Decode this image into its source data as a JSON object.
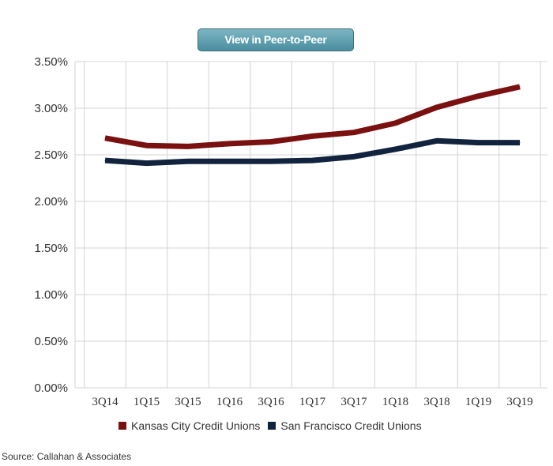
{
  "button": {
    "label": "View in Peer-to-Peer"
  },
  "chart_data": {
    "type": "line",
    "title": "",
    "xlabel": "",
    "ylabel": "",
    "categories": [
      "3Q14",
      "1Q15",
      "3Q15",
      "1Q16",
      "3Q16",
      "1Q17",
      "3Q17",
      "1Q18",
      "3Q18",
      "1Q19",
      "3Q19"
    ],
    "series": [
      {
        "name": "Kansas City Credit Unions",
        "color": "#7a1010",
        "values": [
          2.68,
          2.6,
          2.59,
          2.62,
          2.64,
          2.7,
          2.74,
          2.84,
          3.01,
          3.13,
          3.23
        ]
      },
      {
        "name": "San Francisco Credit Unions",
        "color": "#12243d",
        "values": [
          2.44,
          2.41,
          2.43,
          2.43,
          2.43,
          2.44,
          2.48,
          2.56,
          2.65,
          2.63,
          2.63
        ]
      }
    ],
    "yticks": [
      "0.00%",
      "0.50%",
      "1.00%",
      "1.50%",
      "2.00%",
      "2.50%",
      "3.00%",
      "3.50%"
    ],
    "ylim": [
      0,
      3.5
    ],
    "grid": true,
    "legend_position": "bottom"
  },
  "source": "Source: Callahan & Associates"
}
